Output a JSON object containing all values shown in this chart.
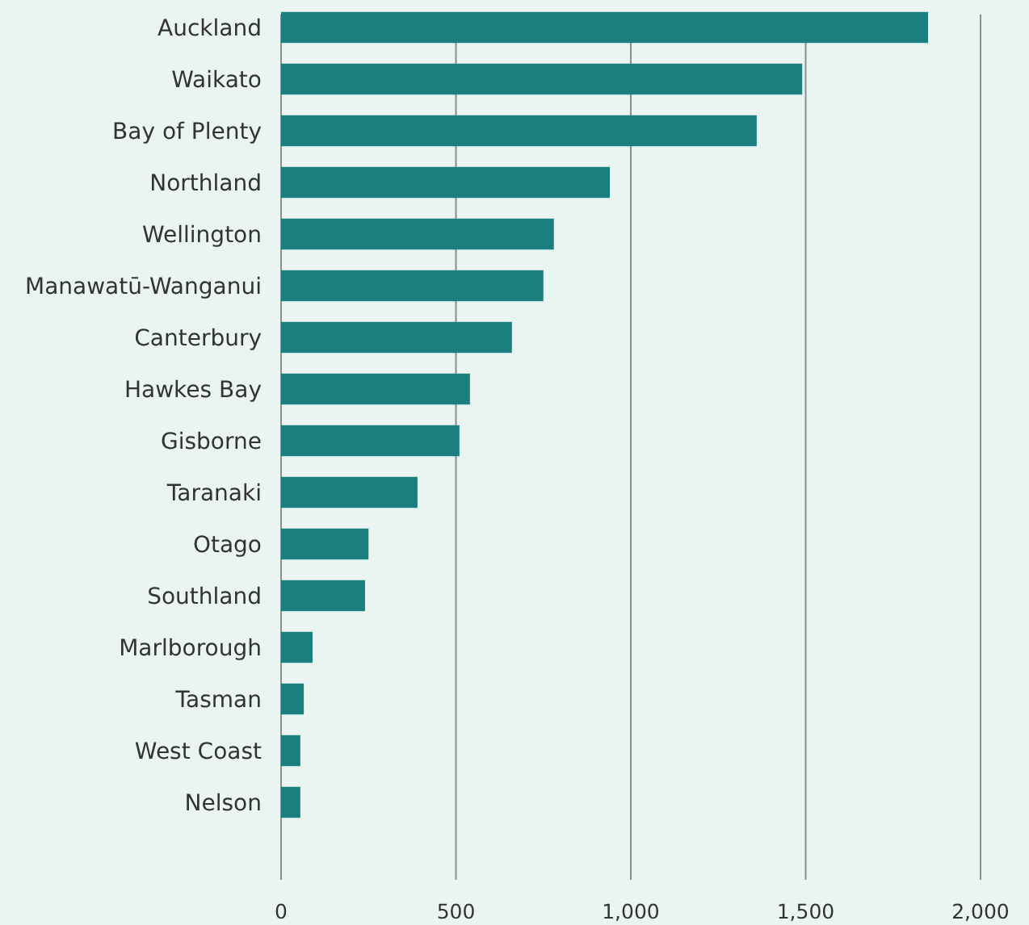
{
  "chart_data": {
    "type": "bar",
    "orientation": "horizontal",
    "categories": [
      "Auckland",
      "Waikato",
      "Bay of Plenty",
      "Northland",
      "Wellington",
      "Manawatū-Wanganui",
      "Canterbury",
      "Hawkes Bay",
      "Gisborne",
      "Taranaki",
      "Otago",
      "Southland",
      "Marlborough",
      "Tasman",
      "West Coast",
      "Nelson"
    ],
    "values": [
      1850,
      1490,
      1360,
      940,
      780,
      750,
      660,
      540,
      510,
      390,
      250,
      240,
      90,
      65,
      55,
      55
    ],
    "color": "#1b7f80",
    "xlim": [
      0,
      2000
    ],
    "xticks": [
      0,
      500,
      {
        "value": 1000,
        "label": "1,000"
      },
      {
        "value": 1500,
        "label": "1,500"
      },
      {
        "value": 2000,
        "label": "2,000"
      }
    ],
    "grid": "x"
  }
}
